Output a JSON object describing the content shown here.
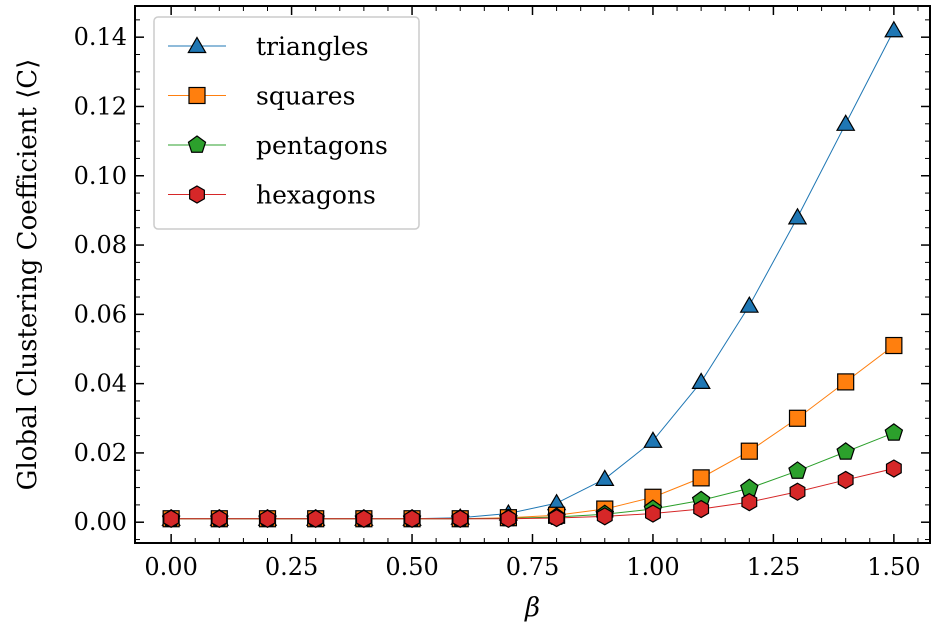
{
  "chart_data": {
    "type": "line",
    "title": "",
    "xlabel": "β",
    "ylabel": "Global Clustering Coefficient ⟨C⟩",
    "xlim": [
      -0.075,
      1.575
    ],
    "ylim": [
      -0.006,
      0.149
    ],
    "xticks": [
      0.0,
      0.25,
      0.5,
      0.75,
      1.0,
      1.25,
      1.5
    ],
    "xtick_labels": [
      "0.00",
      "0.25",
      "0.50",
      "0.75",
      "1.00",
      "1.25",
      "1.50"
    ],
    "yticks": [
      0.0,
      0.02,
      0.04,
      0.06,
      0.08,
      0.1,
      0.12,
      0.14
    ],
    "ytick_labels": [
      "0.00",
      "0.02",
      "0.04",
      "0.06",
      "0.08",
      "0.10",
      "0.12",
      "0.14"
    ],
    "grid": false,
    "legend_position": "top-left",
    "x": [
      0.0,
      0.1,
      0.2,
      0.3,
      0.4,
      0.5,
      0.6,
      0.7,
      0.8,
      0.9,
      1.0,
      1.1,
      1.2,
      1.3,
      1.4,
      1.5
    ],
    "series": [
      {
        "name": "triangles",
        "marker": "triangle",
        "color": "#1f77b4",
        "values": [
          0.001,
          0.001,
          0.001,
          0.001,
          0.001,
          0.001,
          0.0013,
          0.0025,
          0.0055,
          0.0125,
          0.0235,
          0.0405,
          0.0625,
          0.088,
          0.115,
          0.142
        ]
      },
      {
        "name": "squares",
        "marker": "square",
        "color": "#ff7f0e",
        "values": [
          0.001,
          0.001,
          0.001,
          0.001,
          0.001,
          0.001,
          0.001,
          0.0013,
          0.002,
          0.0038,
          0.0072,
          0.0128,
          0.0205,
          0.03,
          0.0405,
          0.051
        ]
      },
      {
        "name": "pentagons",
        "marker": "pentagon",
        "color": "#2ca02c",
        "values": [
          0.001,
          0.001,
          0.001,
          0.001,
          0.001,
          0.001,
          0.001,
          0.0011,
          0.0015,
          0.0023,
          0.0038,
          0.0063,
          0.0098,
          0.0148,
          0.0203,
          0.0258
        ]
      },
      {
        "name": "hexagons",
        "marker": "hexagon",
        "color": "#d62728",
        "values": [
          0.001,
          0.001,
          0.001,
          0.001,
          0.001,
          0.001,
          0.001,
          0.001,
          0.0012,
          0.0017,
          0.0025,
          0.0038,
          0.0058,
          0.0088,
          0.0122,
          0.0155
        ]
      }
    ]
  }
}
